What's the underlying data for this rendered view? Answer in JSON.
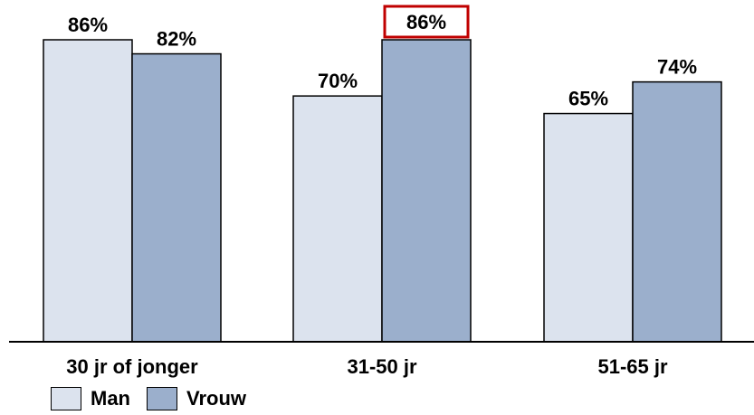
{
  "chart_data": {
    "type": "bar",
    "categories": [
      "30 jr of jonger",
      "31-50 jr",
      "51-65 jr"
    ],
    "series": [
      {
        "name": "Man",
        "values": [
          86,
          70,
          65
        ],
        "color": "#DCE3EE",
        "labels": [
          "86%",
          "70%",
          "65%"
        ]
      },
      {
        "name": "Vrouw",
        "values": [
          82,
          86,
          74
        ],
        "color": "#9BAFCC",
        "labels": [
          "82%",
          "86%",
          "74%"
        ]
      }
    ],
    "ylim": [
      0,
      86
    ],
    "grid": false,
    "legend": "bottom-left",
    "highlight": {
      "series": 1,
      "index": 1,
      "color": "#C00000"
    }
  }
}
